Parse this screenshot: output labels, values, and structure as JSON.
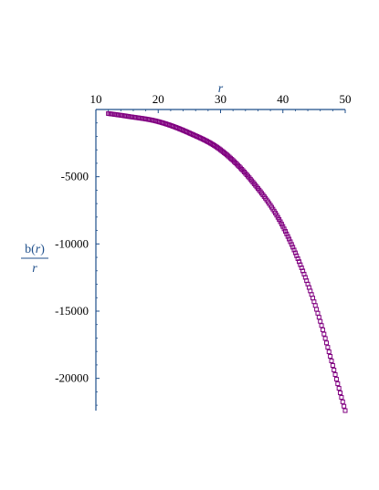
{
  "chart_data": {
    "type": "scatter",
    "title": "",
    "xlabel": "r",
    "ylabel": {
      "numerator_func": "b",
      "numerator_arg": "r",
      "denominator": "r"
    },
    "xlim": [
      10,
      50
    ],
    "ylim": [
      -22400,
      0
    ],
    "x_ticks": [
      10,
      20,
      30,
      40,
      50
    ],
    "y_ticks": [
      -5000,
      -10000,
      -15000,
      -20000
    ],
    "y_tick_labels": [
      "-5000",
      "-10000",
      "-15000",
      "-20000"
    ],
    "grid": false,
    "marker": "square",
    "colors": {
      "series": "#800080",
      "axis": "#1f4f8b"
    },
    "x_axis_position": "top",
    "series": [
      {
        "x_range": [
          12,
          50
        ],
        "x_step": 0.2,
        "points": [
          {
            "x": 12,
            "y": -300
          },
          {
            "x": 15,
            "y": -500
          },
          {
            "x": 20,
            "y": -900
          },
          {
            "x": 25,
            "y": -1750
          },
          {
            "x": 30,
            "y": -3000
          },
          {
            "x": 35,
            "y": -5300
          },
          {
            "x": 40,
            "y": -8700
          },
          {
            "x": 45,
            "y": -14300
          },
          {
            "x": 50,
            "y": -22400
          }
        ]
      }
    ]
  }
}
